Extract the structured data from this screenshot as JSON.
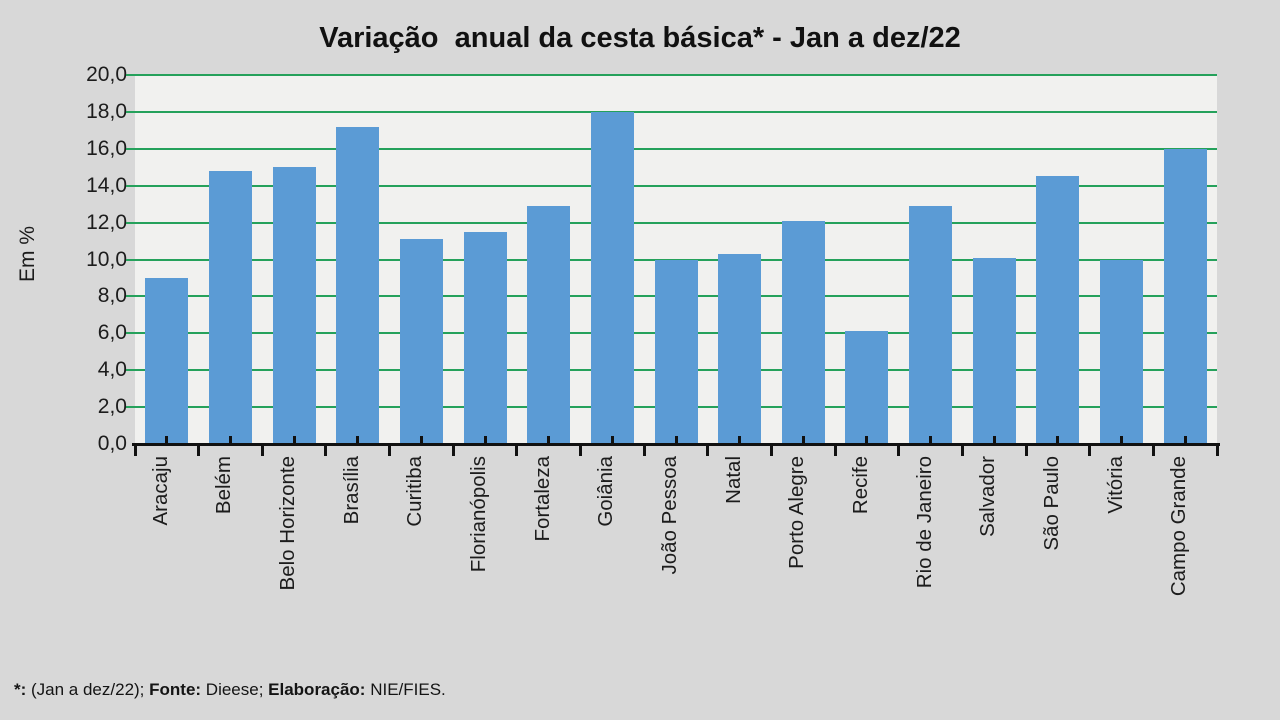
{
  "title": "Variação  anual da cesta básica* - Jan a dez/22",
  "y_axis": {
    "label": "Em %",
    "tick_labels": [
      "20,0",
      "18,0",
      "16,0",
      "14,0",
      "12,0",
      "10,0",
      "8,0",
      "6,0",
      "4,0",
      "2,0",
      "0,0"
    ]
  },
  "footnote": {
    "segments": [
      {
        "text": "*:",
        "bold": true
      },
      {
        "text": " (Jan a dez/22); ",
        "bold": false
      },
      {
        "text": "Fonte:",
        "bold": true
      },
      {
        "text": " Dieese; ",
        "bold": false
      },
      {
        "text": "Elaboração:",
        "bold": true
      },
      {
        "text": " NIE/FIES.",
        "bold": false
      }
    ]
  },
  "colors": {
    "bar": "#5b9bd5",
    "gridline": "#25a15b",
    "background": "#d8d8d8",
    "plot_background": "#f1f1ef",
    "axis": "#111111"
  },
  "chart_data": {
    "type": "bar",
    "title": "Variação anual da cesta básica* - Jan a dez/22",
    "categories": [
      "Aracaju",
      "Belém",
      "Belo Horizonte",
      "Brasília",
      "Curitiba",
      "Florianópolis",
      "Fortaleza",
      "Goiânia",
      "João Pessoa",
      "Natal",
      "Porto Alegre",
      "Recife",
      "Rio de Janeiro",
      "Salvador",
      "São Paulo",
      "Vitória",
      "Campo Grande"
    ],
    "values": [
      9.0,
      14.8,
      15.0,
      17.2,
      11.1,
      11.5,
      12.9,
      18.0,
      10.0,
      10.3,
      12.1,
      6.1,
      12.9,
      10.1,
      14.5,
      10.0,
      16.0
    ],
    "xlabel": "",
    "ylabel": "Em %",
    "ylim": [
      0,
      20
    ],
    "ytick_step": 2,
    "grid": true,
    "legend": "none",
    "decimal_separator": ",",
    "source_note": "*: (Jan a dez/22); Fonte: Dieese; Elaboração: NIE/FIES."
  }
}
